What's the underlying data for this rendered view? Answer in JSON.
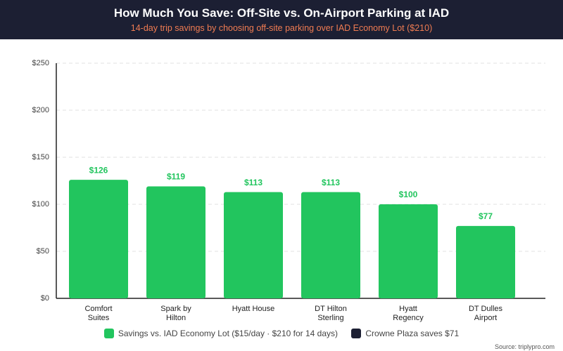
{
  "chart_data": {
    "type": "bar",
    "title": "How Much You Save: Off-Site vs. On-Airport Parking at IAD",
    "subtitle": "14-day trip savings by choosing off-site parking over IAD Economy Lot ($210)",
    "categories": [
      "Comfort Suites",
      "Spark by Hilton",
      "Hyatt House",
      "DT Hilton Sterling",
      "Hyatt Regency",
      "DT Dulles Airport"
    ],
    "series": [
      {
        "name": "Savings vs. IAD Economy Lot ($15/day · $210 for 14 days)",
        "color": "#22c55e",
        "values": [
          126,
          119,
          113,
          113,
          100,
          77
        ],
        "value_labels": [
          "$126",
          "$119",
          "$113",
          "$113",
          "$100",
          "$77"
        ]
      }
    ],
    "legend_note": {
      "text": "Crowne Plaza saves $71",
      "color": "#1c1f33"
    },
    "ylim": [
      0,
      250
    ],
    "yticks": [
      {
        "value": 0,
        "label": "$0"
      },
      {
        "value": 50,
        "label": "$50"
      },
      {
        "value": 100,
        "label": "$100"
      },
      {
        "value": 150,
        "label": "$150"
      },
      {
        "value": 200,
        "label": "$200"
      },
      {
        "value": 250,
        "label": "$250"
      }
    ],
    "grid": true,
    "source": "Source: triplypro.com"
  }
}
